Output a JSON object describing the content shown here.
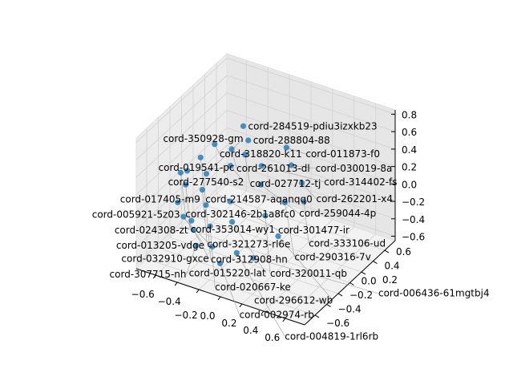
{
  "chart_data": {
    "type": "scatter",
    "projection": "3d",
    "grid": true,
    "title": "",
    "xlabel": "",
    "ylabel": "",
    "zlabel": "",
    "xlim": [
      -0.78,
      0.78
    ],
    "ylim": [
      -0.78,
      0.78
    ],
    "zlim": [
      -0.65,
      0.85
    ],
    "xticks": [
      -0.6,
      -0.4,
      -0.2,
      0.0,
      0.2,
      0.4,
      0.6
    ],
    "yticks": [
      -0.6,
      -0.4,
      -0.2,
      0.0,
      0.2,
      0.4,
      0.6
    ],
    "zticks": [
      -0.6,
      -0.4,
      -0.2,
      0.0,
      0.2,
      0.4,
      0.6,
      0.8
    ],
    "xtick_labels": [
      "−0.6",
      "−0.4",
      "−0.2",
      "0.0",
      "0.2",
      "0.4",
      "0.6"
    ],
    "ytick_labels": [
      "−0.6",
      "−0.4",
      "−0.2",
      "0.0",
      "0.2",
      "0.4",
      "0.6"
    ],
    "ztick_labels": [
      "−0.6",
      "−0.4",
      "−0.2",
      "0.0",
      "0.2",
      "0.4",
      "0.6",
      "0.8"
    ],
    "marker_color": "#1f77b4",
    "points": [
      {
        "x": -0.45,
        "y": 0.45,
        "z": 0.36,
        "label": "cord-284519-pdiu3izxkb23"
      },
      {
        "x": 0.1,
        "y": -0.4,
        "z": -0.4,
        "label": "cord-006436-61mgtbj4"
      },
      {
        "x": -0.6,
        "y": -0.35,
        "z": 0.26,
        "label": "cord-302146-2b1a8fc0"
      },
      {
        "x": -0.55,
        "y": -0.1,
        "z": 0.3,
        "label": "cord-214587-aqanqq0"
      },
      {
        "x": -0.5,
        "y": 0.05,
        "z": 0.38,
        "label": "cord-318820-k11"
      },
      {
        "x": -0.58,
        "y": -0.3,
        "z": 0.1,
        "label": "cord-353014-wy1"
      },
      {
        "x": -0.48,
        "y": -0.2,
        "z": 0.02,
        "label": "cord-321273-rl6e"
      },
      {
        "x": -0.6,
        "y": -0.4,
        "z": -0.05,
        "label": "cord-017405-m9"
      },
      {
        "x": -0.52,
        "y": -0.45,
        "z": -0.15,
        "label": "cord-013205-vdge"
      },
      {
        "x": -0.4,
        "y": -0.5,
        "z": -0.22,
        "label": "cord-032910-gxce"
      },
      {
        "x": -0.2,
        "y": -0.55,
        "z": -0.3,
        "label": "cord-005921-5z03"
      },
      {
        "x": 0.0,
        "y": -0.5,
        "z": -0.32,
        "label": "cord-004819-1rl6rb"
      },
      {
        "x": -0.35,
        "y": 0.35,
        "z": 0.3,
        "label": "cord-288804-88"
      },
      {
        "x": -0.3,
        "y": 0.2,
        "z": 0.25,
        "label": "cord-027712-tj"
      },
      {
        "x": -0.45,
        "y": 0.25,
        "z": 0.22,
        "label": "cord-261013-dl"
      },
      {
        "x": -0.2,
        "y": 0.3,
        "z": 0.1,
        "label": "cord-314402-fs"
      },
      {
        "x": -0.1,
        "y": 0.1,
        "z": 0.05,
        "label": "cord-259044-4p"
      },
      {
        "x": -0.25,
        "y": -0.15,
        "z": -0.05,
        "label": "cord-301477-ir"
      },
      {
        "x": -0.15,
        "y": -0.3,
        "z": -0.15,
        "label": "cord-015220-lat"
      },
      {
        "x": 0.05,
        "y": -0.1,
        "z": -0.12,
        "label": "cord-320011-qb"
      },
      {
        "x": 0.15,
        "y": 0.05,
        "z": -0.02,
        "label": "cord-290316-7v"
      },
      {
        "x": 0.2,
        "y": 0.25,
        "z": 0.1,
        "label": "cord-262201-x4"
      },
      {
        "x": 0.05,
        "y": 0.35,
        "z": 0.18,
        "label": "cord-030019-8a"
      },
      {
        "x": -0.05,
        "y": 0.45,
        "z": 0.28,
        "label": "cord-011873-f0"
      },
      {
        "x": -0.38,
        "y": 0.1,
        "z": 0.15,
        "label": "cord-277540-s2"
      },
      {
        "x": -0.42,
        "y": -0.25,
        "z": -0.1,
        "label": "cord-312908-hn"
      },
      {
        "x": -0.3,
        "y": -0.4,
        "z": -0.2,
        "label": "cord-020667-ke"
      },
      {
        "x": 0.25,
        "y": -0.25,
        "z": -0.18,
        "label": "cord-296612-wb"
      },
      {
        "x": 0.3,
        "y": 0.1,
        "z": 0.02,
        "label": "cord-333106-ud"
      },
      {
        "x": -0.55,
        "y": 0.0,
        "z": 0.05,
        "label": "cord-350928-gm"
      },
      {
        "x": -0.62,
        "y": -0.2,
        "z": 0.18,
        "label": "cord-019541-pc"
      },
      {
        "x": -0.5,
        "y": -0.35,
        "z": -0.25,
        "label": "cord-024308-zt"
      },
      {
        "x": -0.35,
        "y": -0.55,
        "z": -0.35,
        "label": "cord-307715-nh"
      },
      {
        "x": -0.1,
        "y": -0.6,
        "z": -0.42,
        "label": "cord-002974-rb"
      }
    ]
  }
}
